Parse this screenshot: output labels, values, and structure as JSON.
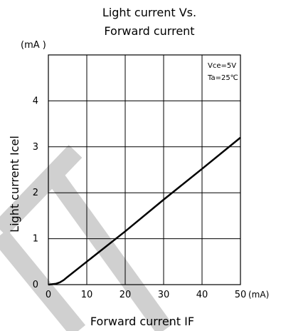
{
  "chart_data": {
    "type": "line",
    "title": [
      "Light current Vs.",
      "Forward current"
    ],
    "xlabel": "Forward current IF",
    "ylabel": "Light current Icel",
    "x_unit": "(mA)",
    "y_unit": "(mA )",
    "xlim": [
      0,
      50
    ],
    "ylim": [
      0,
      5
    ],
    "x_ticks": [
      "0",
      "10",
      "20",
      "30",
      "40",
      "50"
    ],
    "y_ticks": [
      "0",
      "1",
      "2",
      "3",
      "4"
    ],
    "grid": true,
    "annotations": [
      "Vce=5V",
      "Ta=25℃"
    ],
    "series": [
      {
        "x": [
          0,
          1,
          2,
          3,
          4,
          5,
          10,
          20,
          30,
          40,
          50
        ],
        "y": [
          0,
          0.01,
          0.02,
          0.05,
          0.1,
          0.17,
          0.5,
          1.16,
          1.85,
          2.52,
          3.2
        ]
      }
    ]
  },
  "watermark_color": "#d0d0d0",
  "line_color": "#000000"
}
